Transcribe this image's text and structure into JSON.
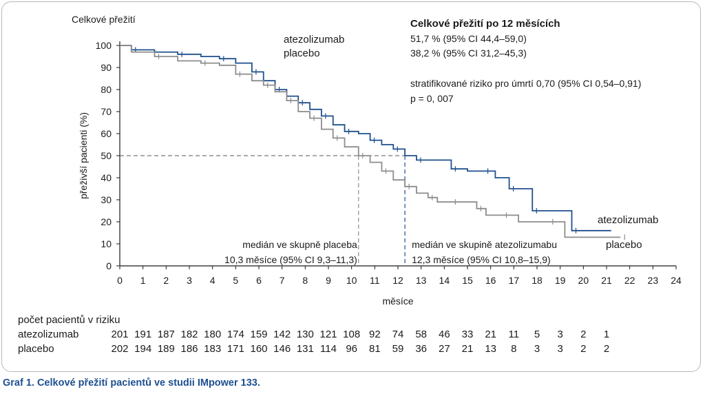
{
  "chart_data": {
    "type": "line",
    "ylabel_top": "Celkové přežití",
    "ylabel": "přeživší pacienti (%)",
    "xlabel": "měsíce",
    "xlim": [
      0,
      24
    ],
    "ylim": [
      0,
      100
    ],
    "x_ticks": [
      "0",
      "1",
      "2",
      "3",
      "4",
      "5",
      "6",
      "7",
      "8",
      "9",
      "10",
      "11",
      "12",
      "13",
      "14",
      "15",
      "16",
      "17",
      "18",
      "19",
      "20",
      "21",
      "22",
      "23",
      "24"
    ],
    "y_ticks": [
      "0",
      "10",
      "20",
      "30",
      "40",
      "50",
      "60",
      "70",
      "80",
      "90",
      "100"
    ],
    "legend": [
      "atezolizumab",
      "placebo"
    ],
    "series": [
      {
        "name": "atezolizumab",
        "color": "#1e4f8c",
        "end_label": "atezolizumab",
        "points": [
          [
            0,
            100
          ],
          [
            0.5,
            98
          ],
          [
            1.5,
            97
          ],
          [
            2.5,
            96
          ],
          [
            3.5,
            95
          ],
          [
            4.3,
            94
          ],
          [
            5,
            92
          ],
          [
            5.7,
            88
          ],
          [
            6.2,
            84
          ],
          [
            6.7,
            80
          ],
          [
            7.2,
            77
          ],
          [
            7.7,
            74
          ],
          [
            8.2,
            71
          ],
          [
            8.7,
            68
          ],
          [
            9.2,
            64
          ],
          [
            9.7,
            61
          ],
          [
            10.3,
            60
          ],
          [
            10.8,
            57
          ],
          [
            11.3,
            55
          ],
          [
            11.8,
            53
          ],
          [
            12.3,
            50
          ],
          [
            12.8,
            48
          ],
          [
            13.5,
            48
          ],
          [
            14.3,
            44
          ],
          [
            15,
            43
          ],
          [
            15.7,
            43
          ],
          [
            16.2,
            40
          ],
          [
            16.8,
            35
          ],
          [
            17.5,
            35
          ],
          [
            17.8,
            25
          ],
          [
            19,
            25
          ],
          [
            19.5,
            16
          ],
          [
            21.2,
            16
          ]
        ]
      },
      {
        "name": "placebo",
        "color": "#8c8c8c",
        "end_label": "placebo",
        "points": [
          [
            0,
            100
          ],
          [
            0.5,
            97
          ],
          [
            1.5,
            95
          ],
          [
            2.5,
            93
          ],
          [
            3.5,
            92
          ],
          [
            4.3,
            91
          ],
          [
            5,
            87
          ],
          [
            5.7,
            84
          ],
          [
            6.2,
            82
          ],
          [
            6.7,
            79
          ],
          [
            7.2,
            75
          ],
          [
            7.7,
            70
          ],
          [
            8.2,
            67
          ],
          [
            8.7,
            62
          ],
          [
            9.2,
            58
          ],
          [
            9.7,
            54
          ],
          [
            10.3,
            50
          ],
          [
            10.8,
            47
          ],
          [
            11.3,
            43
          ],
          [
            11.8,
            39
          ],
          [
            12.3,
            36
          ],
          [
            12.8,
            33
          ],
          [
            13.3,
            31
          ],
          [
            13.7,
            29
          ],
          [
            14.3,
            29
          ],
          [
            15,
            29
          ],
          [
            15.4,
            26
          ],
          [
            15.8,
            23
          ],
          [
            16.5,
            23
          ],
          [
            17.2,
            20
          ],
          [
            18.5,
            20
          ],
          [
            19.2,
            13
          ],
          [
            21.6,
            13
          ]
        ]
      }
    ],
    "medians": [
      {
        "name": "placebo",
        "x": 10.3,
        "color": "#8c8c8c",
        "label_line1": "medián ve skupně placeba",
        "label_line2": "10,3 měsíce (95% CI 9,3–11,3)"
      },
      {
        "name": "atezolizumab",
        "x": 12.3,
        "color": "#1e4f8c",
        "label_line1": "medián ve skupině atezolizumabu",
        "label_line2": "12,3 měsíce (95% CI 10,8–15,9)"
      }
    ],
    "summary": {
      "heading": "Celkové přežití po 12 měsících",
      "atezo_value": "51,7 % (95% CI 44,4–59,0)",
      "placebo_value": "38,2 % (95% CI 31,2–45,3)",
      "hazard": "stratifikované riziko pro úmrtí 0,70 (95% CI 0,54–0,91)",
      "p_value": "p = 0, 007"
    },
    "risk_table": {
      "title": "počet pacientů v riziku",
      "rows": [
        {
          "label": "atezolizumab",
          "values": [
            "201",
            "191",
            "187",
            "182",
            "180",
            "174",
            "159",
            "142",
            "130",
            "121",
            "108",
            "92",
            "74",
            "58",
            "46",
            "33",
            "21",
            "11",
            "5",
            "3",
            "2",
            "1"
          ]
        },
        {
          "label": "placebo",
          "values": [
            "202",
            "194",
            "189",
            "186",
            "183",
            "171",
            "160",
            "146",
            "131",
            "114",
            "96",
            "81",
            "59",
            "36",
            "27",
            "21",
            "13",
            "8",
            "3",
            "3",
            "2",
            "2"
          ]
        }
      ]
    }
  },
  "caption": "Graf 1. Celkové přežití pacientů ve studii IMpower 133."
}
